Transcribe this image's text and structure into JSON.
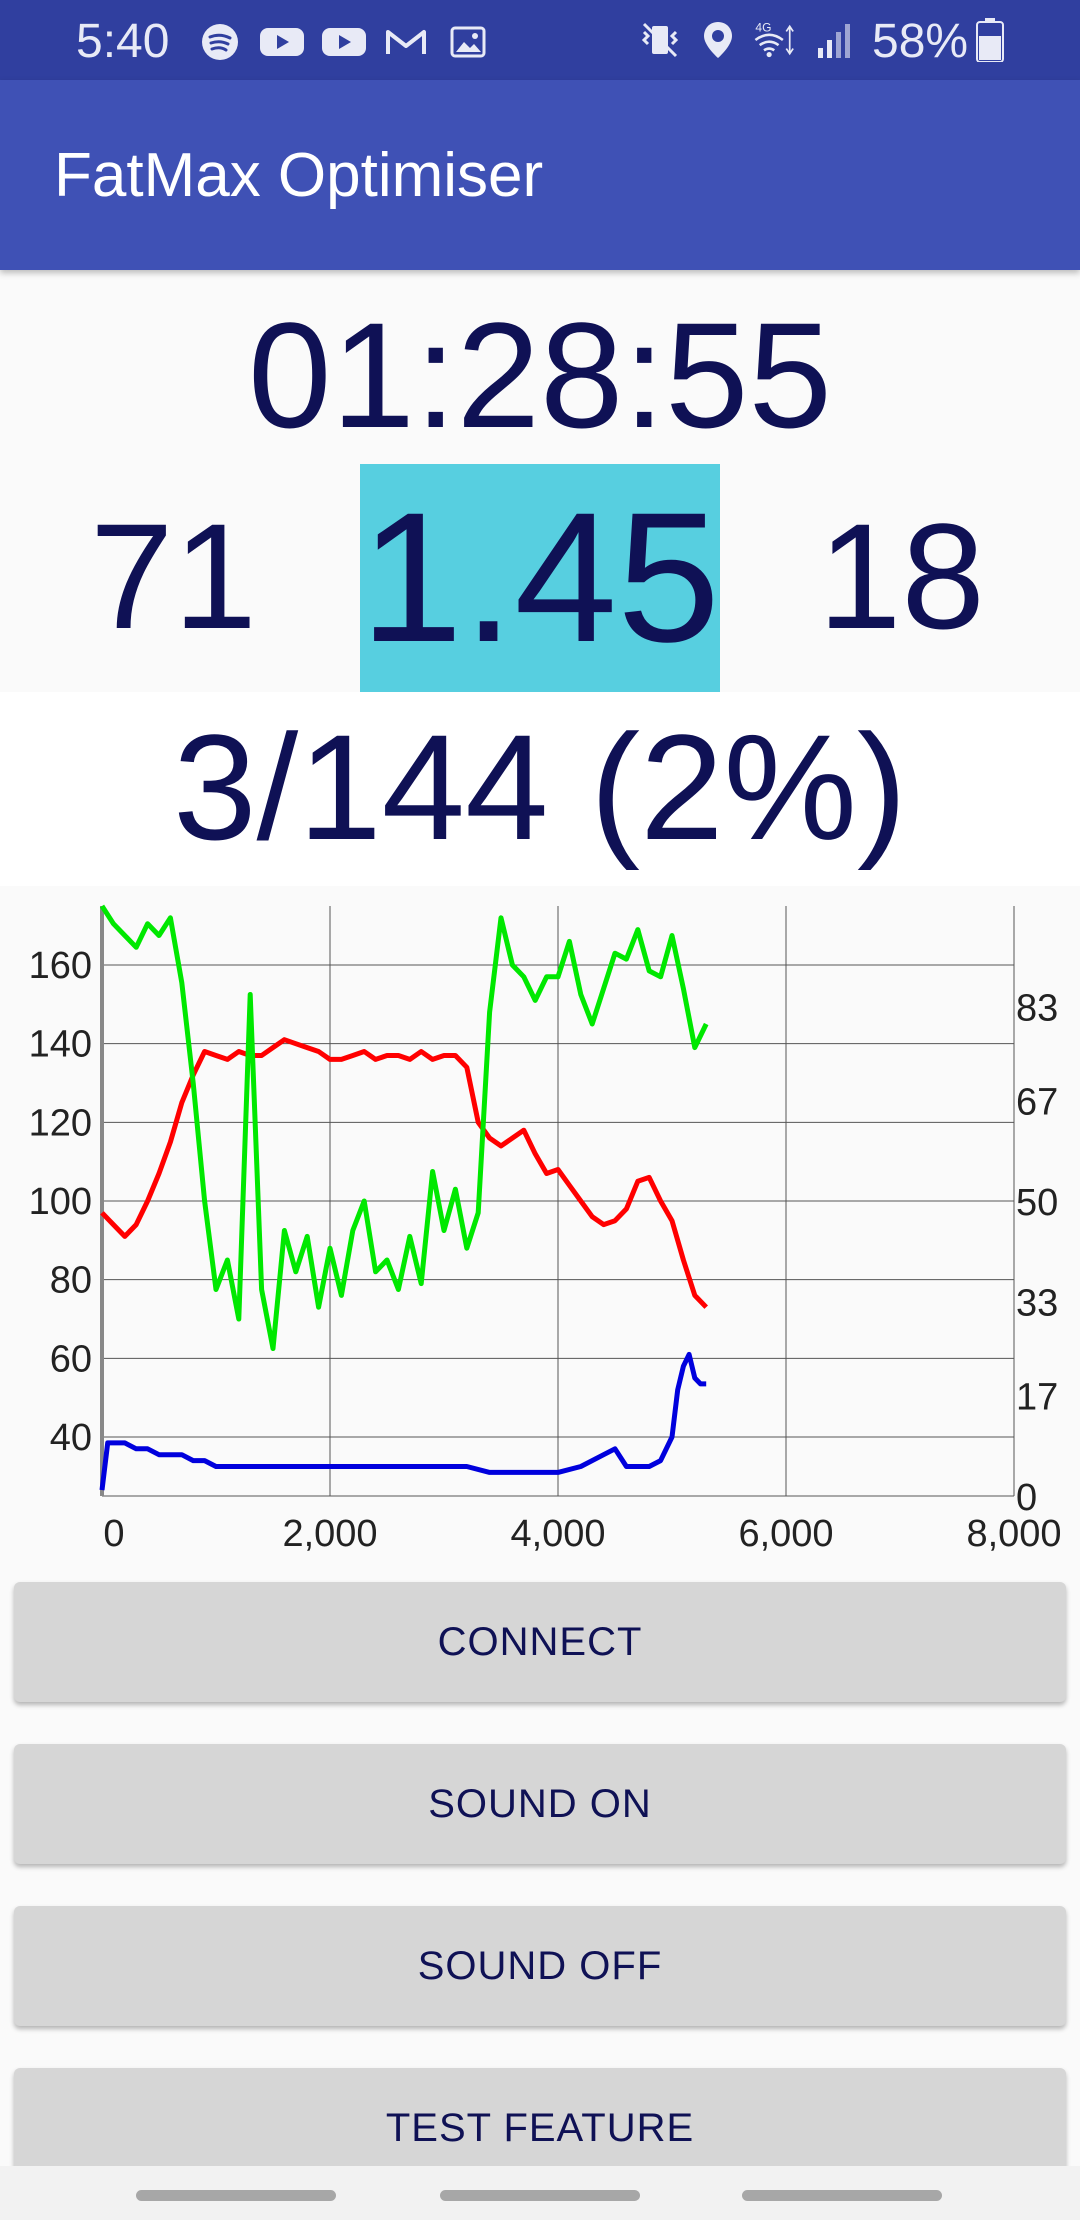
{
  "status_bar": {
    "time": "5:40",
    "battery": "58%",
    "icons_left": [
      "spotify-icon",
      "youtube-icon",
      "youtube-icon",
      "gmail-icon",
      "gallery-icon"
    ],
    "icons_right": [
      "vibrate-mute-icon",
      "location-icon",
      "wifi-4g-icon",
      "signal-icon",
      "battery-icon"
    ]
  },
  "app": {
    "title": "FatMax Optimiser"
  },
  "display": {
    "timer": "01:28:55",
    "left_value": "71",
    "center_value": "1.45",
    "right_value": "18",
    "progress": "3/144 (2%)",
    "highlight_color": "#57cfe0"
  },
  "chart_data": {
    "type": "line",
    "x_ticks": [
      "0",
      "2,000",
      "4,000",
      "6,000",
      "8,000"
    ],
    "y_left_ticks": [
      "40",
      "60",
      "80",
      "100",
      "120",
      "140",
      "160"
    ],
    "y_right_ticks": [
      "0",
      "17",
      "33",
      "50",
      "67",
      "83"
    ],
    "xlim": [
      0,
      8000
    ],
    "ylim_left": [
      25,
      175
    ],
    "ylim_right": [
      0,
      100
    ],
    "grid": true,
    "series": [
      {
        "color": "#ff0000",
        "axis": "left",
        "x": [
          0,
          100,
          200,
          300,
          400,
          500,
          600,
          700,
          800,
          900,
          1000,
          1100,
          1200,
          1300,
          1400,
          1500,
          1600,
          1700,
          1800,
          1900,
          2000,
          2100,
          2200,
          2300,
          2400,
          2500,
          2600,
          2700,
          2800,
          2900,
          3000,
          3100,
          3200,
          3300,
          3400,
          3500,
          3600,
          3700,
          3800,
          3900,
          4000,
          4100,
          4200,
          4300,
          4400,
          4500,
          4600,
          4700,
          4800,
          4900,
          5000,
          5100,
          5200,
          5300
        ],
        "y": [
          97,
          94,
          91,
          94,
          100,
          107,
          115,
          125,
          132,
          138,
          137,
          136,
          138,
          137,
          137,
          139,
          141,
          140,
          139,
          138,
          136,
          136,
          137,
          138,
          136,
          137,
          137,
          136,
          138,
          136,
          137,
          137,
          134,
          120,
          116,
          114,
          116,
          118,
          112,
          107,
          108,
          104,
          100,
          96,
          94,
          95,
          98,
          105,
          106,
          100,
          95,
          85,
          76,
          73
        ]
      },
      {
        "color": "#00e800",
        "axis": "right",
        "x": [
          0,
          100,
          200,
          300,
          400,
          500,
          600,
          700,
          800,
          900,
          1000,
          1100,
          1200,
          1300,
          1400,
          1500,
          1600,
          1700,
          1800,
          1900,
          2000,
          2100,
          2200,
          2300,
          2400,
          2500,
          2600,
          2700,
          2800,
          2900,
          3000,
          3100,
          3200,
          3300,
          3400,
          3500,
          3600,
          3700,
          3800,
          3900,
          4000,
          4100,
          4200,
          4300,
          4400,
          4500,
          4600,
          4700,
          4800,
          4900,
          5000,
          5100,
          5200,
          5300
        ],
        "y": [
          100,
          97,
          95,
          93,
          97,
          95,
          98,
          87,
          70,
          50,
          35,
          40,
          30,
          85,
          35,
          25,
          45,
          38,
          44,
          32,
          42,
          34,
          45,
          50,
          38,
          40,
          35,
          44,
          36,
          55,
          45,
          52,
          42,
          48,
          82,
          98,
          90,
          88,
          84,
          88,
          88,
          94,
          85,
          80,
          86,
          92,
          91,
          96,
          89,
          88,
          95,
          86,
          76,
          80
        ]
      },
      {
        "color": "#0000dd",
        "axis": "right",
        "x": [
          0,
          50,
          100,
          200,
          300,
          400,
          500,
          600,
          700,
          800,
          900,
          1000,
          1200,
          1400,
          1600,
          1800,
          2000,
          2200,
          2400,
          2600,
          2800,
          3000,
          3200,
          3400,
          3600,
          3800,
          4000,
          4200,
          4400,
          4500,
          4600,
          4700,
          4800,
          4900,
          5000,
          5050,
          5100,
          5150,
          5200,
          5250,
          5300
        ],
        "y": [
          1,
          9,
          9,
          9,
          8,
          8,
          7,
          7,
          7,
          6,
          6,
          5,
          5,
          5,
          5,
          5,
          5,
          5,
          5,
          5,
          5,
          5,
          5,
          4,
          4,
          4,
          4,
          5,
          7,
          8,
          5,
          5,
          5,
          6,
          10,
          18,
          22,
          24,
          20,
          19,
          19
        ]
      }
    ]
  },
  "buttons": {
    "connect": "CONNECT",
    "sound_on": "SOUND ON",
    "sound_off": "SOUND OFF",
    "test_feature": "TEST FEATURE"
  }
}
